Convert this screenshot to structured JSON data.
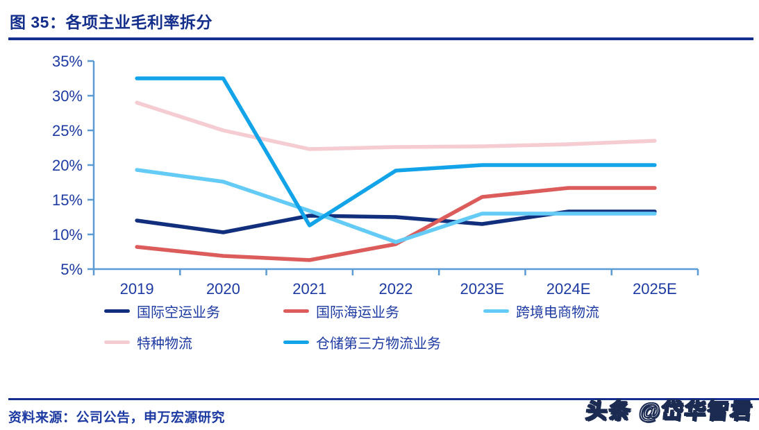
{
  "title": "图 35：各项主业毛利率拆分",
  "source_note": "资料来源：公司公告，申万宏源研究",
  "watermark": "头条 @岱华智君",
  "colors": {
    "title_navy": "#142E8C",
    "text_navy": "#1C3AA2",
    "axis_blue": "#5B9BD5",
    "watermark_fill": "#FFFFFF",
    "watermark_outline": "#1B2B52"
  },
  "chart_data": {
    "type": "line",
    "title": "",
    "xlabel": "",
    "ylabel": "",
    "categories": [
      "2019",
      "2020",
      "2021",
      "2022",
      "2023E",
      "2024E",
      "2025E"
    ],
    "series": [
      {
        "name": "国际空运业务",
        "color": "#112F7D",
        "values": [
          12.0,
          10.3,
          12.7,
          12.5,
          11.5,
          13.3,
          13.3
        ]
      },
      {
        "name": "国际海运业务",
        "color": "#DC5B5B",
        "values": [
          8.2,
          6.9,
          6.3,
          8.6,
          15.4,
          16.7,
          16.7
        ]
      },
      {
        "name": "跨境电商物流",
        "color": "#63CBF6",
        "values": [
          19.3,
          17.6,
          13.4,
          8.9,
          13.0,
          13.0,
          13.0
        ]
      },
      {
        "name": "特种物流",
        "color": "#F4CCD1",
        "values": [
          29.0,
          25.0,
          22.3,
          22.6,
          22.7,
          23.0,
          23.5
        ]
      },
      {
        "name": "仓储第三方物流业务",
        "color": "#12A3E9",
        "values": [
          32.5,
          32.5,
          11.3,
          19.2,
          20.0,
          20.0,
          20.0
        ]
      }
    ],
    "ylim": [
      5,
      35
    ],
    "ytick_step": 5,
    "ytick_labels": [
      "5%",
      "10%",
      "15%",
      "20%",
      "25%",
      "30%",
      "35%"
    ],
    "grid": false,
    "legend_position": "bottom"
  }
}
